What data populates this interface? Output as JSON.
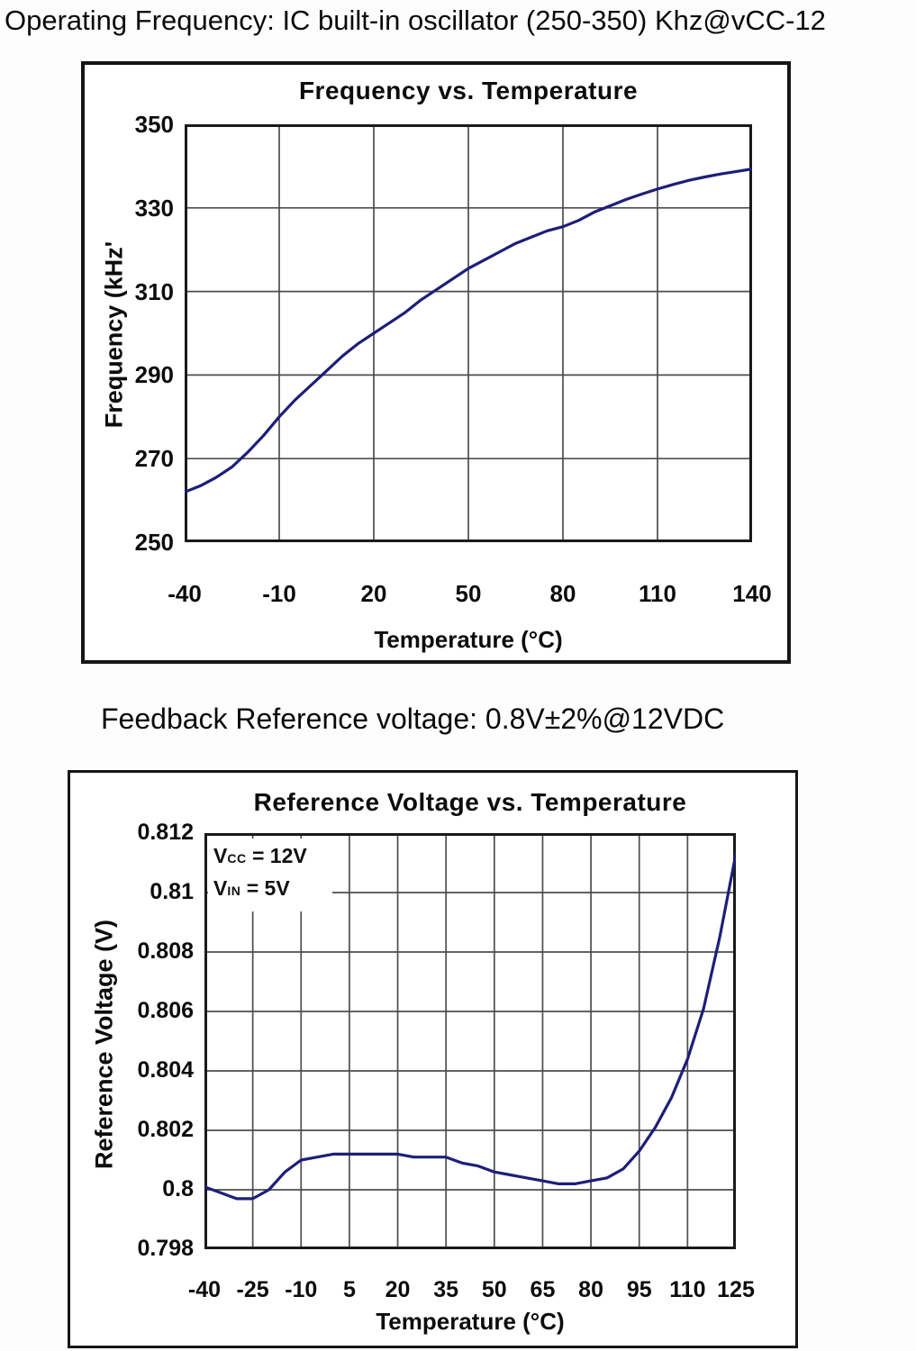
{
  "notes": {
    "operating_frequency": "Operating Frequency: IC built-in oscillator (250-350) Khz@vCC-12",
    "feedback_reference": "Feedback Reference voltage: 0.8V±2%@12VDC"
  },
  "colors": {
    "curve": "#1e1e78",
    "grid": "#4d4d4d",
    "frame": "#1a1a1a",
    "background": "#ffffff"
  },
  "chart_data": [
    {
      "type": "line",
      "name": "frequency-vs-temperature",
      "title": "Frequency vs. Temperature",
      "xlabel": "Temperature (°C)",
      "ylabel": "Frequency (kHz'",
      "grid": true,
      "xlim": [
        -40,
        140
      ],
      "ylim": [
        250,
        350
      ],
      "xticks": [
        "-40",
        "-10",
        "20",
        "50",
        "80",
        "110",
        "140"
      ],
      "yticks": [
        "350",
        "330",
        "310",
        "290",
        "270",
        "250"
      ],
      "series": [
        {
          "name": "oscillator-frequency",
          "x": [
            -40,
            -35,
            -30,
            -25,
            -20,
            -15,
            -10,
            -5,
            0,
            5,
            10,
            15,
            20,
            25,
            30,
            35,
            40,
            45,
            50,
            55,
            60,
            65,
            70,
            75,
            80,
            85,
            90,
            95,
            100,
            105,
            110,
            115,
            120,
            125,
            130,
            135,
            140
          ],
          "y": [
            262,
            263.5,
            265.5,
            268,
            271.5,
            275.5,
            280,
            284,
            287.5,
            291,
            294.5,
            297.5,
            300,
            302.5,
            305,
            308,
            310.5,
            313,
            315.5,
            317.5,
            319.5,
            321.5,
            323,
            324.5,
            325.5,
            327,
            329,
            330.5,
            332,
            333.3,
            334.5,
            335.6,
            336.6,
            337.4,
            338.1,
            338.7,
            339.3
          ]
        }
      ]
    },
    {
      "type": "line",
      "name": "reference-voltage-vs-temperature",
      "title": "Reference Voltage vs. Temperature",
      "xlabel": "Temperature (°C)",
      "ylabel": "Reference Voltage (V)",
      "grid": true,
      "legend_position": "top-left",
      "legend": {
        "vcc": [
          "V",
          "CC",
          " = 12V"
        ],
        "vin": [
          "V",
          "IN",
          " = 5V"
        ]
      },
      "xlim": [
        -40,
        125
      ],
      "ylim": [
        0.798,
        0.812
      ],
      "xticks": [
        "-40",
        "-25",
        "-10",
        "5",
        "20",
        "35",
        "50",
        "65",
        "80",
        "95",
        "110",
        "125"
      ],
      "yticks": [
        "0.812",
        "0.81",
        "0.808",
        "0.806",
        "0.804",
        "0.802",
        "0.8",
        "0.798"
      ],
      "series": [
        {
          "name": "reference-voltage",
          "x": [
            -40,
            -35,
            -30,
            -25,
            -20,
            -15,
            -10,
            -5,
            0,
            5,
            10,
            15,
            20,
            25,
            30,
            35,
            40,
            45,
            50,
            55,
            60,
            65,
            70,
            75,
            80,
            85,
            90,
            95,
            100,
            105,
            110,
            115,
            120,
            125
          ],
          "y": [
            0.8001,
            0.7999,
            0.7997,
            0.7997,
            0.8,
            0.8006,
            0.801,
            0.8011,
            0.8012,
            0.8012,
            0.8012,
            0.8012,
            0.8012,
            0.8011,
            0.8011,
            0.8011,
            0.8009,
            0.8008,
            0.8006,
            0.8005,
            0.8004,
            0.8003,
            0.8002,
            0.8002,
            0.8003,
            0.8004,
            0.8007,
            0.8013,
            0.8021,
            0.8031,
            0.8044,
            0.8061,
            0.8085,
            0.8113
          ]
        }
      ]
    }
  ]
}
